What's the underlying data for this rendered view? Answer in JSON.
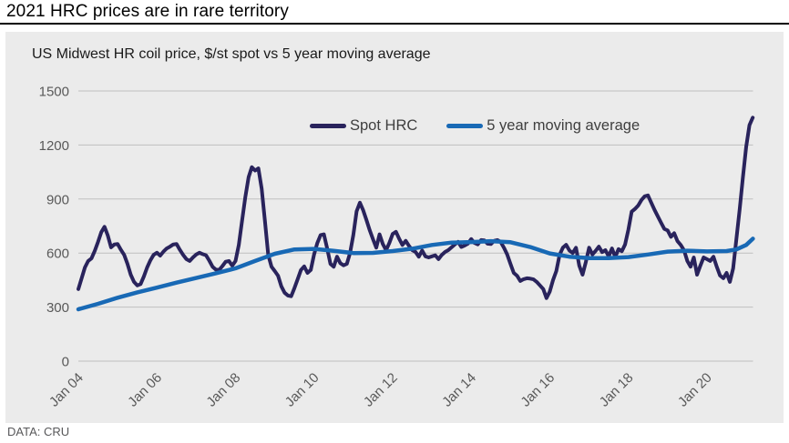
{
  "header": {
    "title": "2021 HRC prices are in rare territory"
  },
  "footer": {
    "source": "DATA: CRU"
  },
  "chart_data": {
    "type": "line",
    "title": "US Midwest HR coil price, $/st spot vs 5 year moving average",
    "ylabel": "$/st",
    "ylim": [
      0,
      1500
    ],
    "y_ticks": [
      0,
      300,
      600,
      900,
      1200,
      1500
    ],
    "x_ticks": [
      "Jan 04",
      "Jan 06",
      "Jan 08",
      "Jan 10",
      "Jan 12",
      "Jan 14",
      "Jan 16",
      "Jan 18",
      "Jan 20"
    ],
    "x_tick_interval_years": 2,
    "x_start": "2004-01",
    "x_end": "2021-03",
    "grid": true,
    "legend_position": "inside-top-center",
    "colors": {
      "panel_background": "#EBEBEB",
      "grid": "#BFBFBF",
      "axis_text": "#595959"
    },
    "series": [
      {
        "name": "Spot HRC",
        "color": "#29235C",
        "frequency": "monthly",
        "start": "2004-01",
        "values": [
          400,
          460,
          520,
          556,
          570,
          612,
          662,
          716,
          746,
          698,
          632,
          648,
          650,
          618,
          590,
          540,
          480,
          440,
          420,
          428,
          470,
          520,
          560,
          590,
          602,
          586,
          608,
          626,
          636,
          648,
          650,
          618,
          590,
          566,
          556,
          576,
          592,
          602,
          594,
          588,
          558,
          524,
          508,
          506,
          528,
          552,
          556,
          530,
          556,
          645,
          780,
          912,
          1022,
          1077,
          1058,
          1070,
          958,
          778,
          590,
          524,
          500,
          474,
          415,
          380,
          364,
          360,
          406,
          456,
          506,
          526,
          490,
          506,
          592,
          656,
          700,
          704,
          626,
          540,
          524,
          580,
          544,
          532,
          540,
          600,
          700,
          832,
          880,
          838,
          784,
          727,
          677,
          630,
          704,
          650,
          616,
          657,
          706,
          718,
          680,
          645,
          668,
          640,
          616,
          606,
          580,
          614,
          582,
          576,
          582,
          588,
          566,
          590,
          606,
          616,
          632,
          648,
          662,
          634,
          642,
          652,
          678,
          656,
          648,
          672,
          670,
          652,
          650,
          668,
          672,
          662,
          630,
          592,
          540,
          490,
          474,
          445,
          455,
          460,
          458,
          454,
          440,
          420,
          400,
          350,
          386,
          450,
          500,
          590,
          630,
          646,
          614,
          600,
          630,
          530,
          480,
          550,
          630,
          592,
          612,
          636,
          605,
          616,
          582,
          626,
          578,
          622,
          610,
          648,
          730,
          830,
          845,
          864,
          895,
          915,
          920,
          880,
          840,
          804,
          768,
          734,
          726,
          690,
          710,
          666,
          645,
          615,
          556,
          524,
          576,
          480,
          530,
          576,
          566,
          556,
          580,
          524,
          475,
          460,
          490,
          440,
          515,
          680,
          845,
          1020,
          1190,
          1310,
          1352
        ]
      },
      {
        "name": "5 year moving average",
        "color": "#1869B5",
        "frequency": "semiannual-anchors",
        "points": [
          [
            0,
            288
          ],
          [
            0.5,
            318
          ],
          [
            1,
            352
          ],
          [
            1.5,
            382
          ],
          [
            2,
            408
          ],
          [
            2.5,
            436
          ],
          [
            3,
            462
          ],
          [
            3.5,
            488
          ],
          [
            4,
            515
          ],
          [
            4.5,
            556
          ],
          [
            5,
            596
          ],
          [
            5.5,
            620
          ],
          [
            6,
            623
          ],
          [
            6.5,
            612
          ],
          [
            7,
            600
          ],
          [
            7.5,
            601
          ],
          [
            8,
            611
          ],
          [
            8.5,
            624
          ],
          [
            9,
            645
          ],
          [
            9.5,
            658
          ],
          [
            10,
            661
          ],
          [
            10.5,
            666
          ],
          [
            11,
            660
          ],
          [
            11.5,
            634
          ],
          [
            12,
            598
          ],
          [
            12.5,
            580
          ],
          [
            13,
            572
          ],
          [
            13.5,
            572
          ],
          [
            14,
            578
          ],
          [
            14.5,
            592
          ],
          [
            15,
            608
          ],
          [
            15.5,
            613
          ],
          [
            16,
            609
          ],
          [
            16.5,
            611
          ],
          [
            16.75,
            620
          ],
          [
            17,
            645
          ],
          [
            17.17,
            680
          ]
        ]
      }
    ]
  }
}
